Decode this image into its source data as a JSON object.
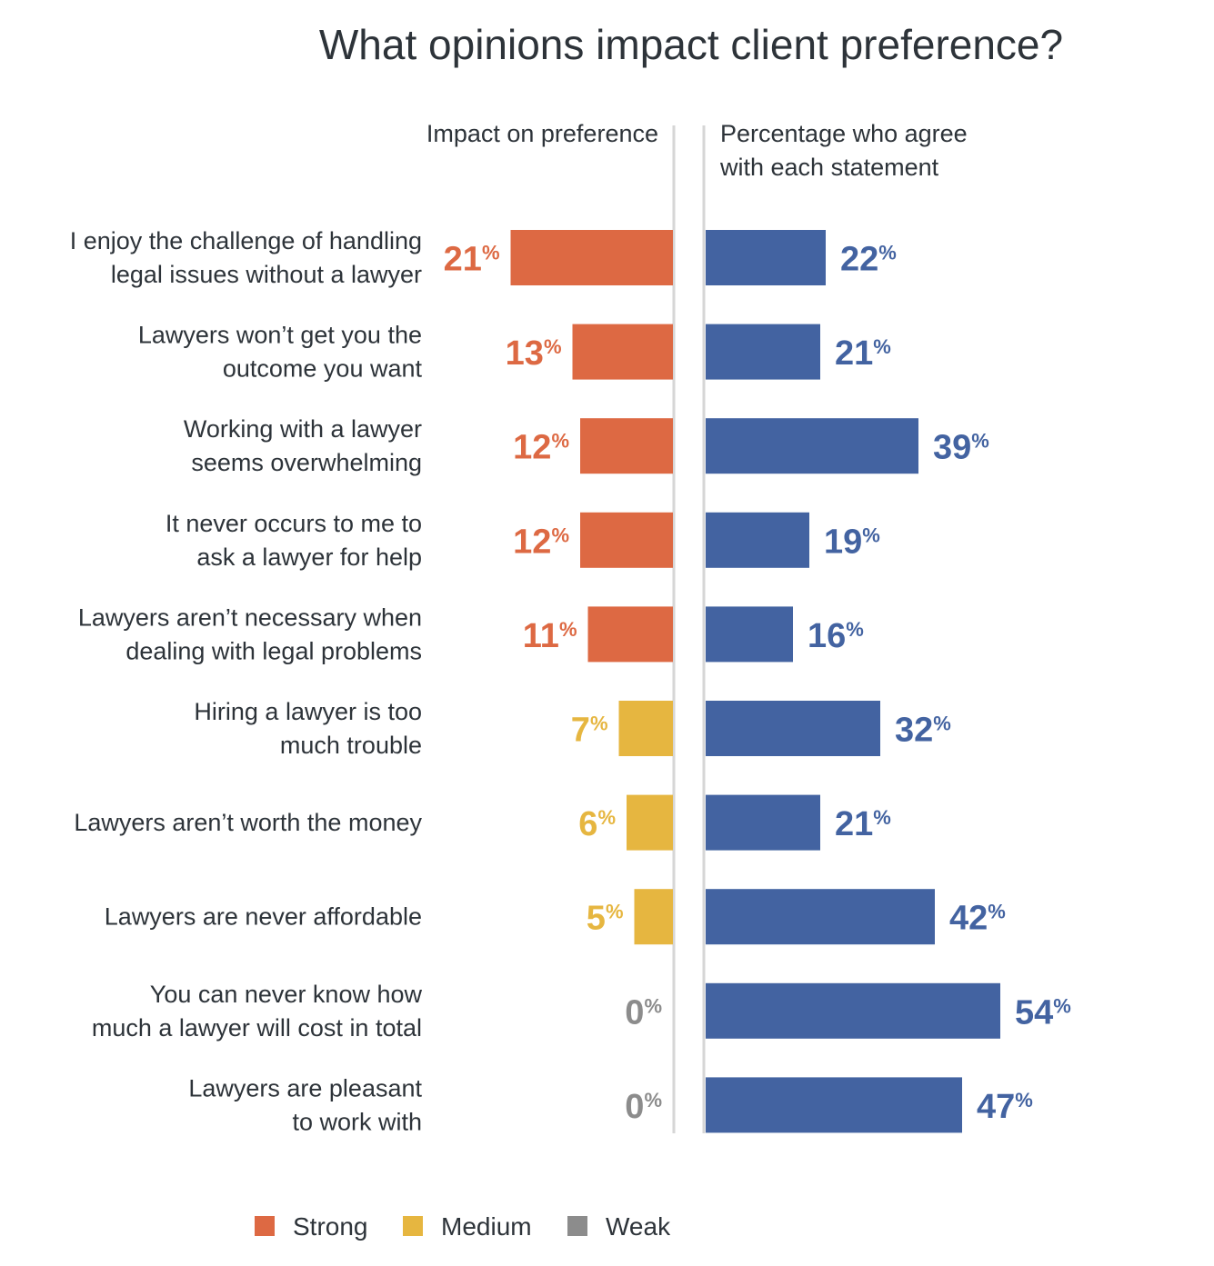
{
  "chart_data": {
    "type": "bar",
    "title": "What opinions impact client preference?",
    "left_header": "Impact on preference",
    "right_header": [
      "Percentage who agree",
      "with each statement"
    ],
    "unit": "%",
    "categories": [
      [
        "I enjoy the challenge of handling",
        "legal issues without a lawyer"
      ],
      [
        "Lawyers won’t get you the",
        "outcome you want"
      ],
      [
        "Working with a lawyer",
        "seems overwhelming"
      ],
      [
        "It never occurs to me to",
        "ask a lawyer for help"
      ],
      [
        "Lawyers aren’t necessary when",
        "dealing with legal problems"
      ],
      [
        "Hiring a lawyer is too",
        "much trouble"
      ],
      [
        "Lawyers aren’t worth the money"
      ],
      [
        "Lawyers are never affordable"
      ],
      [
        "You can never know how",
        "much a lawyer will cost in total"
      ],
      [
        "Lawyers are pleasant",
        "to work with"
      ]
    ],
    "series": [
      {
        "name": "Impact on preference",
        "values": [
          21,
          13,
          12,
          12,
          11,
          7,
          6,
          5,
          0,
          0
        ],
        "impact": [
          "Strong",
          "Strong",
          "Strong",
          "Strong",
          "Strong",
          "Medium",
          "Medium",
          "Medium",
          "Weak",
          "Weak"
        ]
      },
      {
        "name": "Percentage who agree with each statement",
        "values": [
          22,
          21,
          39,
          19,
          16,
          32,
          21,
          42,
          54,
          47
        ],
        "color": "#4363a1"
      }
    ],
    "legend": [
      {
        "label": "Strong",
        "color": "#dd6943"
      },
      {
        "label": "Medium",
        "color": "#e6b640"
      },
      {
        "label": "Weak",
        "color": "#8c8c8c"
      }
    ],
    "legend_position": "bottom"
  }
}
